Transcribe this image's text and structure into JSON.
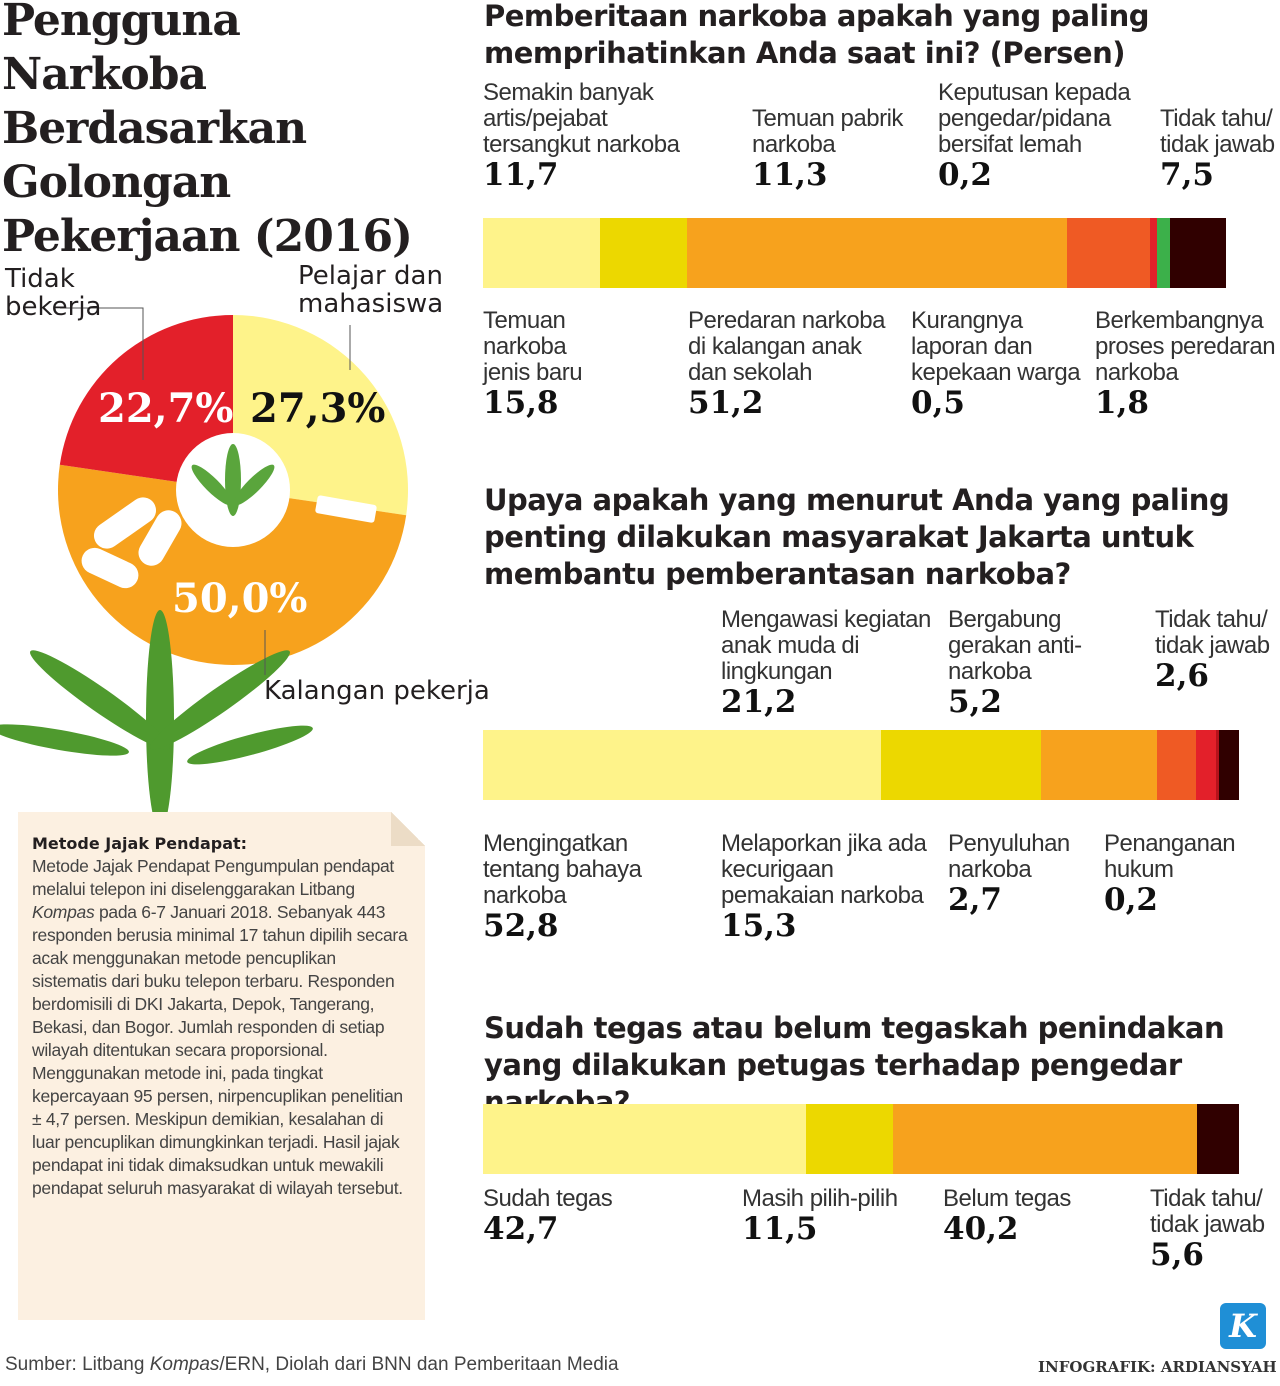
{
  "title": "Pengguna Narkoba Berdasarkan Golongan Pekerjaan (2016)",
  "pie": {
    "slices": [
      {
        "label": "Pelajar dan mahasiswa",
        "value": 27.3,
        "text": "27,3%",
        "color": "#fef38a"
      },
      {
        "label": "Kalangan pekerja",
        "value": 50.0,
        "text": "50,0%",
        "color": "#f7a21d"
      },
      {
        "label": "Tidak bekerja",
        "value": 22.7,
        "text": "22,7%",
        "color": "#e3202a"
      }
    ]
  },
  "chart_data": [
    {
      "type": "bar",
      "stacked": true,
      "title": "Pemberitaan narkoba apakah yang paling memprihatinkan Anda saat ini? (Persen)",
      "categories": [
        "Temuan narkoba jenis baru",
        "Semakin banyak artis/pejabat tersangkut narkoba",
        "Peredaran narkoba di kalangan anak dan sekolah",
        "Temuan pabrik narkoba",
        "Kurangnya laporan dan kepekaan warga",
        "Keputusan kepada pengedar/pidana bersifat lemah",
        "Berkembangnya proses peredaran narkoba",
        "Tidak tahu/ tidak jawab"
      ],
      "values": [
        15.8,
        11.7,
        51.2,
        11.3,
        0.5,
        0.2,
        1.8,
        7.5
      ],
      "labels": [
        "15,8",
        "11,7",
        "51,2",
        "11,3",
        "0,5",
        "0,2",
        "1,8",
        "7,5"
      ],
      "colors": [
        "#fef38a",
        "#ecd800",
        "#f7a21d",
        "#ef5a24",
        "#e3202a",
        "#e3202a",
        "#3cb04a",
        "#300000"
      ]
    },
    {
      "type": "bar",
      "stacked": true,
      "title": "Upaya apakah yang menurut Anda yang paling penting dilakukan masyarakat Jakarta untuk membantu pemberantasan narkoba?",
      "categories": [
        "Mengingatkan tentang bahaya narkoba",
        "Mengawasi kegiatan anak muda di lingkungan",
        "Melaporkan jika ada kecurigaan pemakaian narkoba",
        "Bergabung gerakan anti-narkoba",
        "Penyuluhan narkoba",
        "Penanganan hukum",
        "Tidak tahu/ tidak jawab"
      ],
      "values": [
        52.8,
        21.2,
        15.3,
        5.2,
        2.7,
        0.2,
        2.6
      ],
      "labels": [
        "52,8",
        "21,2",
        "15,3",
        "5,2",
        "2,7",
        "0,2",
        "2,6"
      ],
      "colors": [
        "#fef38a",
        "#ecd800",
        "#f7a21d",
        "#ef5a24",
        "#e3202a",
        "#b5121b",
        "#300000"
      ]
    },
    {
      "type": "bar",
      "stacked": true,
      "title": "Sudah tegas atau belum tegaskah penindakan yang dilakukan petugas terhadap pengedar narkoba?",
      "categories": [
        "Sudah tegas",
        "Masih pilih-pilih",
        "Belum tegas",
        "Tidak tahu/ tidak jawab"
      ],
      "values": [
        42.7,
        11.5,
        40.2,
        5.6
      ],
      "labels": [
        "42,7",
        "11,5",
        "40,2",
        "5,6"
      ],
      "colors": [
        "#fef38a",
        "#ecd800",
        "#f7a21d",
        "#300000"
      ]
    }
  ],
  "note": {
    "heading": "Metode Jajak Pendapat:",
    "body_before": "Metode Jajak Pendapat Pengumpulan pendapat melalui telepon ini diselenggarakan Litbang ",
    "body_italic": "Kompas",
    "body_after": " pada 6-7 Januari 2018. Sebanyak 443 responden berusia minimal 17 tahun dipilih secara acak menggunakan metode pencuplikan sistematis dari buku telepon terbaru. Responden berdomisili di DKI Jakarta, Depok, Tangerang, Bekasi, dan Bogor. Jumlah responden di setiap wilayah ditentukan secara proporsional. Menggunakan metode ini, pada tingkat kepercayaan 95 persen, nirpencuplikan penelitian ± 4,7 persen. Meskipun demikian, kesalahan di luar pencuplikan dimungkinkan terjadi. Hasil jajak pendapat ini tidak dimaksudkan untuk mewakili pendapat seluruh masyarakat di wilayah tersebut."
  },
  "footer": {
    "source_before": "Sumber: Litbang ",
    "source_italic": "Kompas",
    "source_after": "/ERN, Diolah dari BNN dan Pemberitaan Media",
    "credit": "INFOGRAFIK: ARDIANSYAH",
    "logo": "K"
  }
}
